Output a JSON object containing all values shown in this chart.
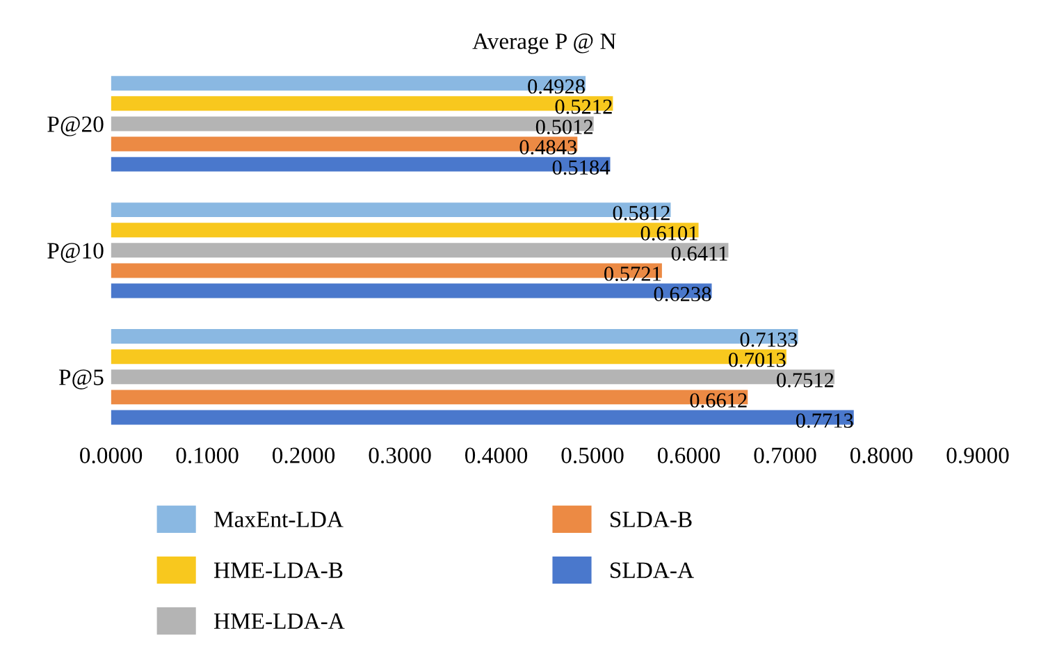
{
  "chart_data": {
    "type": "bar",
    "orientation": "horizontal",
    "title": "Average P @ N",
    "categories": [
      "P@20",
      "P@10",
      "P@5"
    ],
    "series": [
      {
        "name": "MaxEnt-LDA",
        "color": "#8ab8e2",
        "values": [
          0.4928,
          0.5812,
          0.7133
        ]
      },
      {
        "name": "HME-LDA-B",
        "color": "#f8c81e",
        "values": [
          0.5212,
          0.6101,
          0.7013
        ]
      },
      {
        "name": "HME-LDA-A",
        "color": "#b4b4b4",
        "values": [
          0.5012,
          0.6411,
          0.7512
        ]
      },
      {
        "name": "SLDA-B",
        "color": "#ec8a44",
        "values": [
          0.4843,
          0.5721,
          0.6612
        ]
      },
      {
        "name": "SLDA-A",
        "color": "#4a78cc",
        "values": [
          0.5184,
          0.6238,
          0.7713
        ]
      }
    ],
    "xlim": [
      0,
      0.9
    ],
    "xticks": [
      {
        "value": 0,
        "label": "0.0000"
      },
      {
        "value": 0.1,
        "label": "0.1000"
      },
      {
        "value": 0.2,
        "label": "0.2000"
      },
      {
        "value": 0.3,
        "label": "0.3000"
      },
      {
        "value": 0.4,
        "label": "0.4000"
      },
      {
        "value": 0.5,
        "label": "0.5000"
      },
      {
        "value": 0.6,
        "label": "0.6000"
      },
      {
        "value": 0.7,
        "label": "0.7000"
      },
      {
        "value": 0.8,
        "label": "0.8000"
      },
      {
        "value": 0.9,
        "label": "0.9000"
      }
    ],
    "data_labels": true,
    "grid": false,
    "legend": "bottom"
  }
}
